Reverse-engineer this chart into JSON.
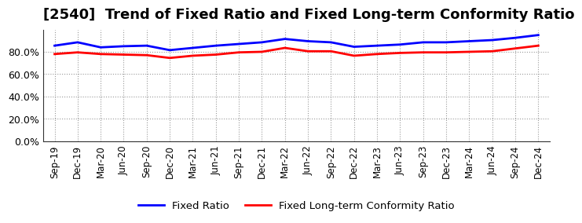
{
  "title": "[2540]  Trend of Fixed Ratio and Fixed Long-term Conformity Ratio",
  "x_labels": [
    "Sep-19",
    "Dec-19",
    "Mar-20",
    "Jun-20",
    "Sep-20",
    "Dec-20",
    "Mar-21",
    "Jun-21",
    "Sep-21",
    "Dec-21",
    "Mar-22",
    "Jun-22",
    "Sep-22",
    "Dec-22",
    "Mar-23",
    "Jun-23",
    "Sep-23",
    "Dec-23",
    "Mar-24",
    "Jun-24",
    "Sep-24",
    "Dec-24"
  ],
  "fixed_ratio": [
    85.5,
    88.5,
    84.0,
    85.0,
    85.5,
    81.5,
    83.5,
    85.5,
    87.0,
    88.5,
    91.5,
    89.5,
    88.5,
    84.5,
    85.5,
    86.5,
    88.5,
    88.5,
    89.5,
    90.5,
    92.5,
    95.0
  ],
  "fixed_lt_ratio": [
    78.0,
    79.5,
    78.0,
    77.5,
    77.0,
    74.5,
    76.5,
    77.5,
    79.5,
    80.0,
    83.5,
    80.5,
    80.5,
    76.5,
    78.0,
    79.0,
    79.5,
    79.5,
    80.0,
    80.5,
    83.0,
    85.5
  ],
  "line_color_blue": "#0000FF",
  "line_color_red": "#FF0000",
  "ylim": [
    0,
    100
  ],
  "yticks": [
    0,
    20,
    40,
    60,
    80
  ],
  "grid_color": "#999999",
  "background_color": "#FFFFFF",
  "plot_bg_color": "#FFFFFF",
  "legend_fixed_ratio": "Fixed Ratio",
  "legend_fixed_lt_ratio": "Fixed Long-term Conformity Ratio",
  "title_fontsize": 13,
  "tick_fontsize": 8.5,
  "legend_fontsize": 9.5
}
